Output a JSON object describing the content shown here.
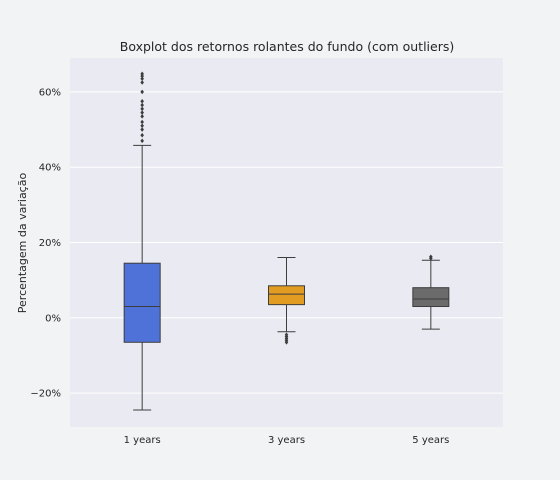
{
  "chart_data": {
    "type": "boxplot",
    "title": "Boxplot dos retornos rolantes do fundo (com outliers)",
    "xlabel": "",
    "ylabel": "Percentagem da variação",
    "categories": [
      "1 years",
      "3 years",
      "5 years"
    ],
    "ylim": [
      -29,
      69
    ],
    "yticks": [
      -20,
      0,
      20,
      40,
      60
    ],
    "ytick_labels": [
      "−20%",
      "0%",
      "20%",
      "40%",
      "60%"
    ],
    "grid": true,
    "boxes": [
      {
        "category": "1 years",
        "color": "#4f72d9",
        "whisker_low": -24.5,
        "q1": -6.5,
        "median": 3.0,
        "q3": 14.5,
        "whisker_high": 45.8,
        "outliers": [
          47.0,
          48.5,
          50.0,
          51.0,
          52.0,
          53.5,
          54.5,
          55.5,
          56.5,
          57.5,
          60.0,
          62.5,
          63.5,
          64.2,
          64.8
        ]
      },
      {
        "category": "3 years",
        "color": "#e39c22",
        "whisker_low": -3.7,
        "q1": 3.5,
        "median": 6.3,
        "q3": 8.5,
        "whisker_high": 16.0,
        "outliers": [
          -4.5,
          -5.0,
          -5.5,
          -6.0,
          -6.5
        ]
      },
      {
        "category": "5 years",
        "color": "#6b6b6b",
        "whisker_low": -3.0,
        "q1": 3.0,
        "median": 5.0,
        "q3": 8.0,
        "whisker_high": 15.3,
        "outliers": [
          15.8,
          16.2
        ]
      }
    ]
  }
}
